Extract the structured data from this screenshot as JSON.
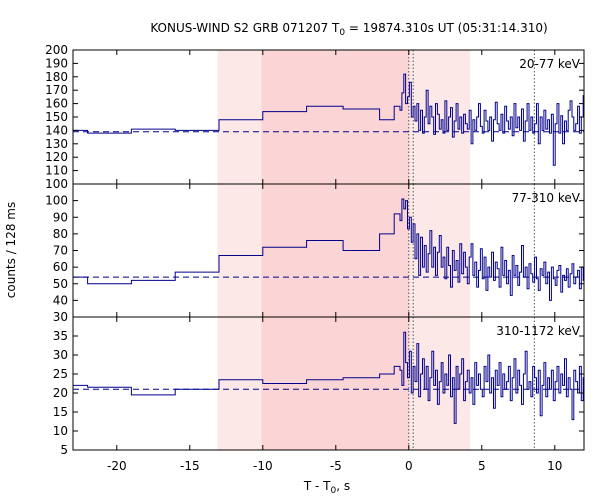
{
  "chart_data": {
    "type": "line",
    "title": {
      "prefix": "KONUS-WIND S2 GRB 071207 T",
      "sub": "0",
      "suffix": " = 19874.310s UT (05:31:14.310)"
    },
    "xlabel": {
      "prefix": "T - T",
      "sub": "0",
      "suffix": ", s"
    },
    "ylabel": "counts / 128 ms",
    "xlim": [
      -23,
      12
    ],
    "x_ticks": [
      -20,
      -15,
      -10,
      -5,
      0,
      5,
      10
    ],
    "grid": false,
    "colors": {
      "series": "#00008b",
      "background_fit": "#00008b",
      "light_band": "#fde8e8",
      "dark_band": "#fbd5d5",
      "marker_lines": "#555555"
    },
    "shaded_intervals": [
      {
        "x0": -13.1,
        "x1": 4.2,
        "shade": "light"
      },
      {
        "x0": -10.1,
        "x1": 0.0,
        "shade": "dark"
      }
    ],
    "vertical_markers": [
      0.0,
      0.3,
      8.6
    ],
    "panels": [
      {
        "label": "20-77 keV",
        "ylim": [
          100,
          200
        ],
        "y_ticks": [
          100,
          110,
          120,
          130,
          140,
          150,
          160,
          170,
          180,
          190,
          200
        ],
        "background_level": 139,
        "steps": [
          {
            "x0": -23.0,
            "x1": -22.0,
            "y": 140
          },
          {
            "x0": -22.0,
            "x1": -19.0,
            "y": 138
          },
          {
            "x0": -19.0,
            "x1": -16.0,
            "y": 141
          },
          {
            "x0": -16.0,
            "x1": -13.0,
            "y": 140
          },
          {
            "x0": -13.0,
            "x1": -10.0,
            "y": 148
          },
          {
            "x0": -10.0,
            "x1": -7.0,
            "y": 154
          },
          {
            "x0": -7.0,
            "x1": -4.5,
            "y": 158
          },
          {
            "x0": -4.5,
            "x1": -2.0,
            "y": 156
          },
          {
            "x0": -2.0,
            "x1": -1.0,
            "y": 148
          },
          {
            "x0": -1.0,
            "x1": -0.6,
            "y": 158
          }
        ],
        "fine": {
          "x0": -0.6,
          "dx": 0.128,
          "y": [
            155,
            168,
            182,
            160,
            165,
            176,
            150,
            158,
            147,
            160,
            140,
            155,
            138,
            150,
            170,
            145,
            158,
            150,
            137,
            160,
            152,
            141,
            148,
            138,
            162,
            140,
            150,
            157,
            135,
            147,
            160,
            141,
            150,
            138,
            152,
            145,
            141,
            155,
            130,
            148,
            140,
            150,
            160,
            143,
            138,
            155,
            147,
            140,
            150,
            132,
            148,
            161,
            145,
            140,
            152,
            138,
            158,
            147,
            141,
            150,
            136,
            160,
            142,
            150,
            140,
            156,
            132,
            147,
            160,
            140,
            150,
            138,
            145,
            160,
            130,
            150,
            140,
            155,
            141,
            148,
            138,
            152,
            114,
            145,
            160,
            138,
            151,
            130,
            147,
            140,
            155,
            162,
            150,
            140,
            145,
            158,
            138,
            150,
            166,
            145
          ]
        }
      },
      {
        "label": "77-310 keV",
        "ylim": [
          30,
          110
        ],
        "y_ticks": [
          30,
          40,
          50,
          60,
          70,
          80,
          90,
          100
        ],
        "background_level": 54,
        "steps": [
          {
            "x0": -23.0,
            "x1": -22.0,
            "y": 54
          },
          {
            "x0": -22.0,
            "x1": -19.0,
            "y": 50
          },
          {
            "x0": -19.0,
            "x1": -16.0,
            "y": 52
          },
          {
            "x0": -16.0,
            "x1": -13.0,
            "y": 57
          },
          {
            "x0": -13.0,
            "x1": -10.0,
            "y": 67
          },
          {
            "x0": -10.0,
            "x1": -7.0,
            "y": 72
          },
          {
            "x0": -7.0,
            "x1": -4.5,
            "y": 76
          },
          {
            "x0": -4.5,
            "x1": -2.0,
            "y": 70
          },
          {
            "x0": -2.0,
            "x1": -1.0,
            "y": 80
          },
          {
            "x0": -1.0,
            "x1": -0.6,
            "y": 92
          }
        ],
        "fine": {
          "x0": -0.6,
          "dx": 0.128,
          "y": [
            88,
            101,
            95,
            100,
            83,
            90,
            75,
            86,
            65,
            80,
            55,
            78,
            60,
            73,
            57,
            68,
            82,
            60,
            72,
            55,
            69,
            79,
            60,
            66,
            53,
            72,
            61,
            48,
            70,
            58,
            64,
            51,
            74,
            56,
            69,
            60,
            50,
            66,
            74,
            55,
            63,
            48,
            58,
            71,
            53,
            66,
            46,
            60,
            54,
            69,
            52,
            63,
            59,
            48,
            72,
            55,
            64,
            50,
            58,
            43,
            67,
            55,
            61,
            49,
            57,
            73,
            54,
            60,
            47,
            62,
            56,
            51,
            66,
            53,
            46,
            59,
            55,
            63,
            50,
            57,
            40,
            60,
            53,
            49,
            58,
            61,
            45,
            55,
            52,
            59,
            48,
            56,
            62,
            50,
            54,
            58,
            47,
            60,
            52,
            55
          ]
        }
      },
      {
        "label": "310-1172 keV",
        "ylim": [
          5,
          40
        ],
        "y_ticks": [
          5,
          10,
          15,
          20,
          25,
          30,
          35
        ],
        "background_level": 21,
        "steps": [
          {
            "x0": -23.0,
            "x1": -22.0,
            "y": 22
          },
          {
            "x0": -22.0,
            "x1": -19.0,
            "y": 21.5
          },
          {
            "x0": -19.0,
            "x1": -16.0,
            "y": 19.5
          },
          {
            "x0": -16.0,
            "x1": -13.0,
            "y": 21
          },
          {
            "x0": -13.0,
            "x1": -10.0,
            "y": 23.5
          },
          {
            "x0": -10.0,
            "x1": -7.0,
            "y": 22.5
          },
          {
            "x0": -7.0,
            "x1": -4.5,
            "y": 23.5
          },
          {
            "x0": -4.5,
            "x1": -2.0,
            "y": 24
          },
          {
            "x0": -2.0,
            "x1": -1.0,
            "y": 25
          },
          {
            "x0": -1.0,
            "x1": -0.6,
            "y": 27
          }
        ],
        "fine": {
          "x0": -0.6,
          "dx": 0.128,
          "y": [
            26,
            22,
            36,
            28,
            24,
            31,
            20,
            27,
            23,
            33,
            19,
            25,
            29,
            21,
            27,
            18,
            24,
            31,
            22,
            26,
            17,
            23,
            28,
            20,
            25,
            22,
            30,
            19,
            24,
            12,
            27,
            21,
            25,
            29,
            18,
            23,
            26,
            20,
            24,
            17,
            28,
            22,
            25,
            21,
            19,
            27,
            23,
            30,
            20,
            24,
            16,
            26,
            22,
            28,
            19,
            25,
            21,
            23,
            27,
            18,
            24,
            29,
            20,
            26,
            22,
            17,
            25,
            31,
            21,
            23,
            19,
            27,
            24,
            20,
            26,
            14,
            22,
            28,
            19,
            24,
            21,
            26,
            18,
            23,
            27,
            20,
            25,
            22,
            29,
            19,
            24,
            21,
            13,
            26,
            23,
            20,
            27,
            18,
            24,
            22
          ]
        }
      }
    ]
  }
}
